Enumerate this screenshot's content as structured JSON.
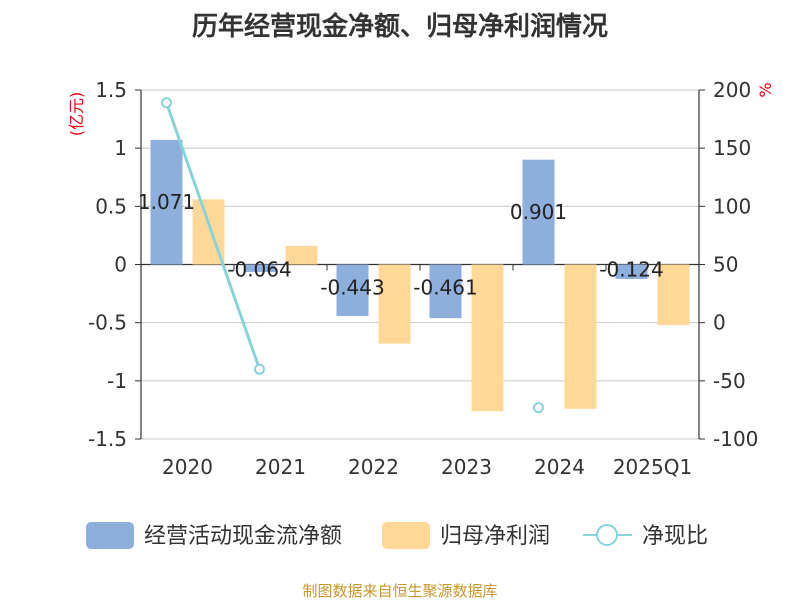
{
  "chart_data": {
    "type": "bar+line",
    "title": "历年经营现金净额、归母净利润情况",
    "categories": [
      "2020",
      "2021",
      "2022",
      "2023",
      "2024",
      "2025Q1"
    ],
    "left_axis": {
      "unit": "(亿元)",
      "ylim": [
        -1.5,
        1.5
      ],
      "ticks": [
        "-1.5",
        "-1",
        "-0.5",
        "0",
        "0.5",
        "1",
        "1.5"
      ]
    },
    "right_axis": {
      "unit": "%",
      "ylim": [
        -100,
        200
      ],
      "ticks": [
        "-100",
        "-50",
        "0",
        "50",
        "100",
        "150",
        "200"
      ]
    },
    "series": [
      {
        "name": "经营活动现金流净额",
        "type": "bar",
        "axis": "left",
        "color": "#8eaedc",
        "values": [
          1.071,
          -0.064,
          -0.443,
          -0.461,
          0.901,
          -0.124
        ],
        "labels": [
          "1.071",
          "-0.064",
          "-0.443",
          "-0.461",
          "0.901",
          "-0.124"
        ]
      },
      {
        "name": "归母净利润",
        "type": "bar",
        "axis": "left",
        "color": "#ffd897",
        "values": [
          0.56,
          0.16,
          -0.68,
          -1.26,
          -1.24,
          -0.52
        ]
      },
      {
        "name": "净现比",
        "type": "line",
        "axis": "right",
        "color": "#88d3d9",
        "values": [
          189,
          -40,
          null,
          null,
          -73,
          null
        ]
      }
    ],
    "grid": true,
    "legend": "bottom"
  },
  "footer": {
    "source": "制图数据来自恒生聚源数据库"
  }
}
